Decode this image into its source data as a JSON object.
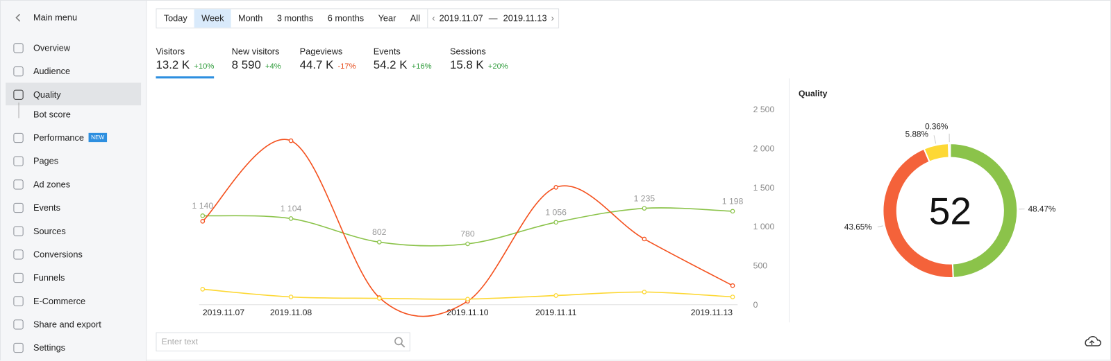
{
  "sidebar": {
    "back": "Main menu",
    "items": [
      {
        "label": "Overview"
      },
      {
        "label": "Audience"
      },
      {
        "label": "Quality",
        "active": true,
        "children": [
          "Bot score"
        ]
      },
      {
        "label": "Performance",
        "badge": "NEW"
      },
      {
        "label": "Pages"
      },
      {
        "label": "Ad zones"
      },
      {
        "label": "Events"
      },
      {
        "label": "Sources"
      },
      {
        "label": "Conversions"
      },
      {
        "label": "Funnels"
      },
      {
        "label": "E-Commerce"
      },
      {
        "label": "Share and export"
      },
      {
        "label": "Settings"
      }
    ]
  },
  "toolbar": {
    "periods": [
      {
        "label": "Today"
      },
      {
        "label": "Week",
        "selected": true
      },
      {
        "label": "Month"
      },
      {
        "label": "3 months"
      },
      {
        "label": "6 months"
      },
      {
        "label": "Year"
      },
      {
        "label": "All"
      }
    ],
    "date_range": {
      "from": "2019.11.07",
      "separator": "—",
      "to": "2019.11.13"
    }
  },
  "metrics": [
    {
      "label": "Visitors",
      "value": "13.2 K",
      "change": "+10%",
      "selected": true
    },
    {
      "label": "New visitors",
      "value": "8 590",
      "change": "+4%"
    },
    {
      "label": "Pageviews",
      "value": "44.7 K",
      "change": "-17%"
    },
    {
      "label": "Events",
      "value": "54.2 K",
      "change": "+16%"
    },
    {
      "label": "Sessions",
      "value": "15.8 K",
      "change": "+20%"
    }
  ],
  "chart_data": [
    {
      "type": "line",
      "categories": [
        "2019.11.07",
        "2019.11.08",
        null,
        "2019.11.10",
        "2019.11.11",
        null,
        "2019.11.13"
      ],
      "series": [
        {
          "color": "#8bc34a",
          "values": [
            1140,
            1104,
            802,
            780,
            1056,
            1235,
            1198
          ],
          "value_labels": [
            "1 140",
            "1 104",
            "802",
            "780",
            "1 056",
            "1 235",
            "1 198"
          ]
        },
        {
          "color": "#f4511e",
          "values": [
            1069,
            2101,
            91,
            45,
            1504,
            842,
            245
          ]
        },
        {
          "color": "#fdd835",
          "values": [
            199,
            100,
            82,
            72,
            118,
            163,
            100
          ]
        }
      ],
      "ylim": [
        0,
        2500
      ],
      "yticks": [
        0,
        500,
        {
          "value": 1000,
          "label": "1 000"
        },
        {
          "value": 1500,
          "label": "1 500"
        },
        {
          "value": 2000,
          "label": "2 000"
        },
        {
          "value": 2500,
          "label": "2 500"
        }
      ],
      "grid": false
    },
    {
      "type": "pie",
      "title": "Quality",
      "center_value": 52,
      "categories": [
        null,
        null,
        null,
        null
      ],
      "values": [
        48.47,
        43.65,
        5.88,
        0.36
      ],
      "value_labels": [
        "48.47%",
        "43.65%",
        "5.88%",
        "0.36%"
      ],
      "colors": [
        "#8bc34a",
        "#f4623a",
        "#fdd835",
        "#dddddd"
      ]
    }
  ],
  "search": {
    "placeholder": "Enter text"
  }
}
